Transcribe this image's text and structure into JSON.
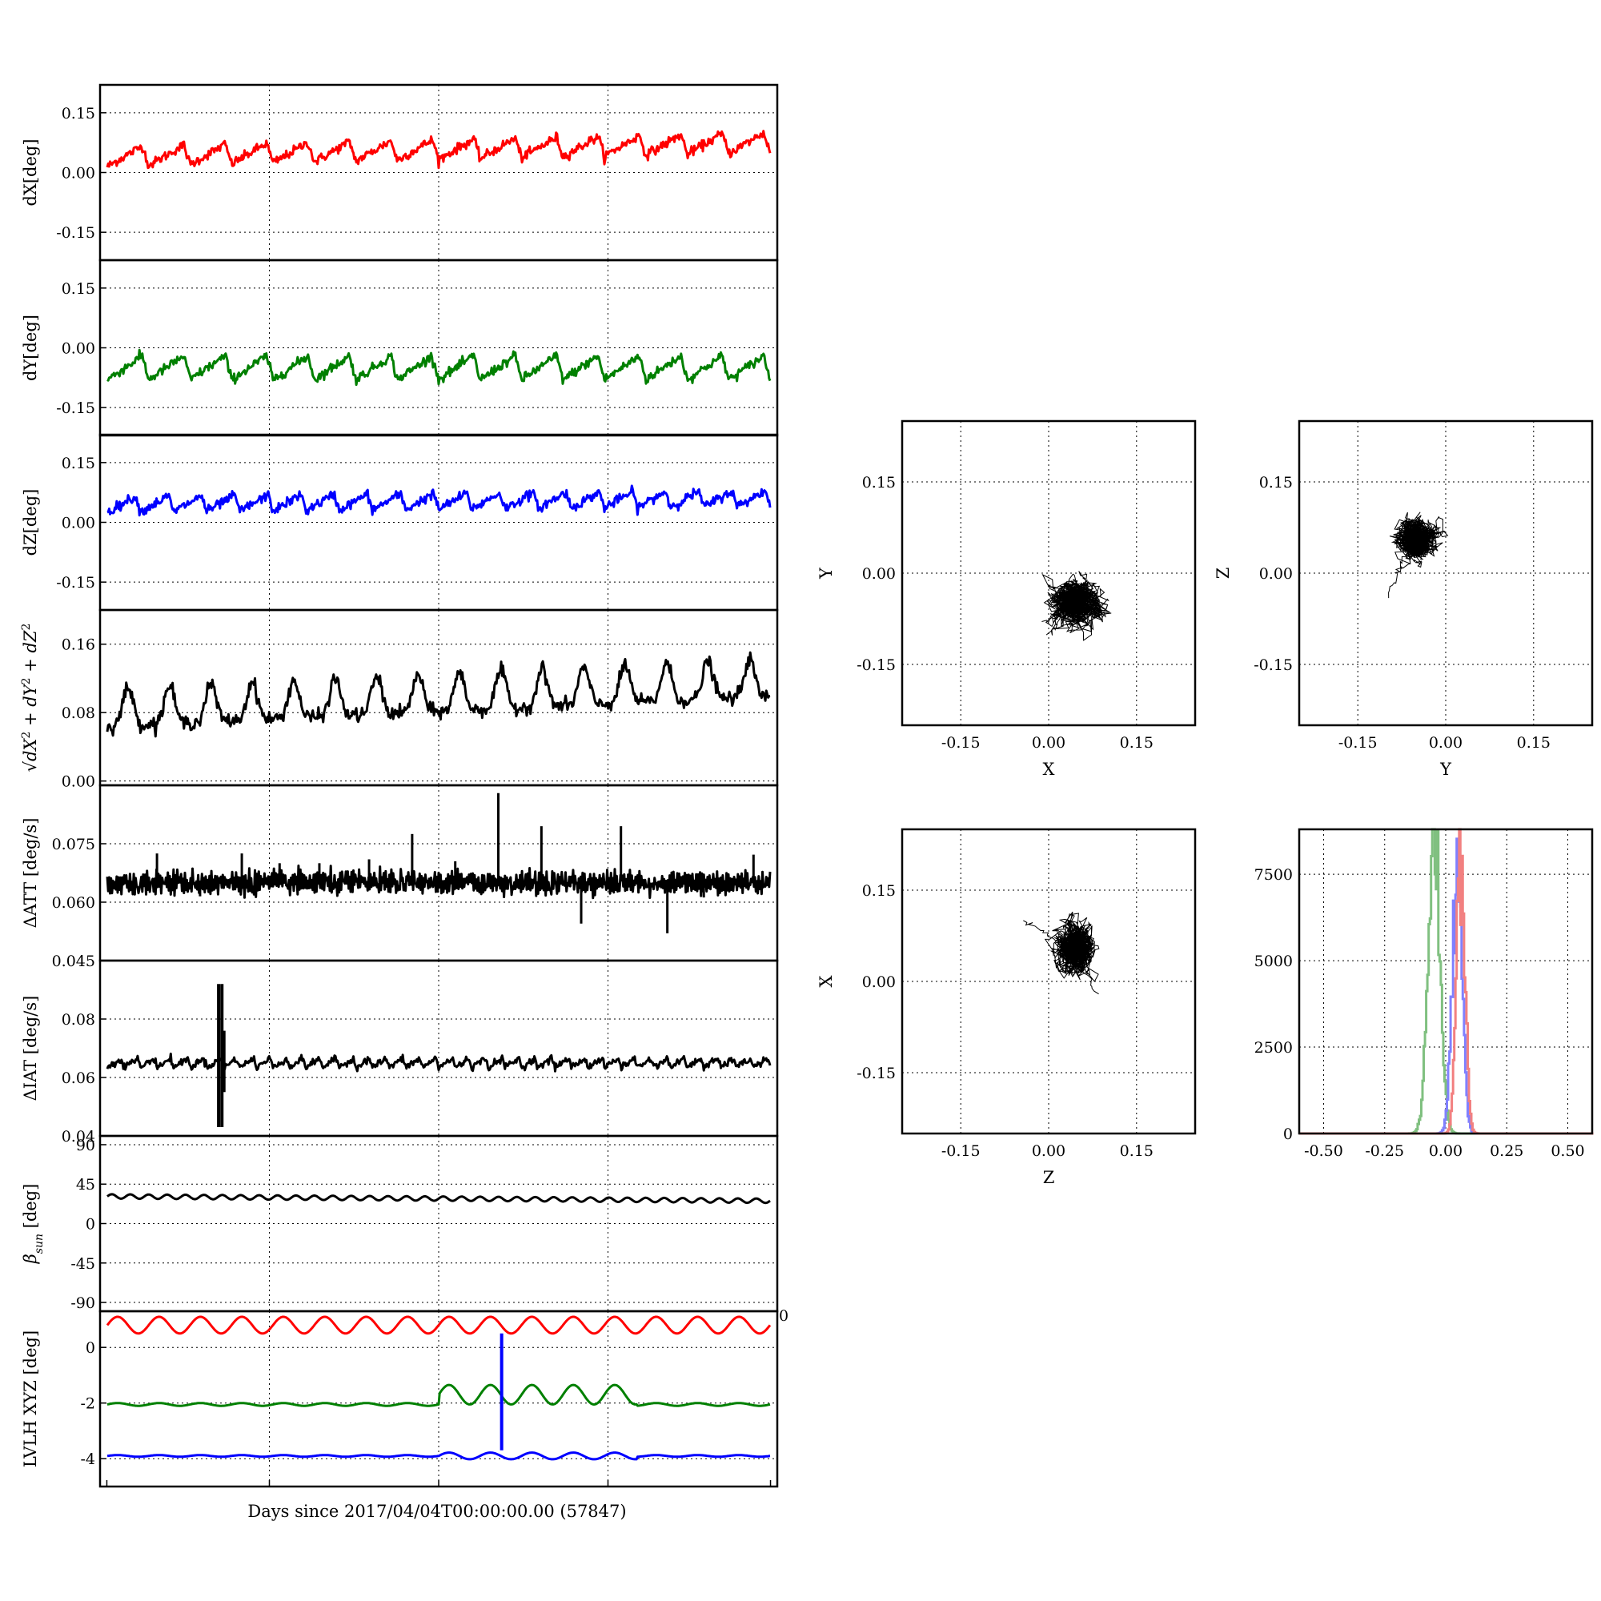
{
  "figure": {
    "xlabel": "Days since 2017/04/04T00:00:00.00 (57847)",
    "grid": true
  },
  "colors": {
    "red": "#ff0000",
    "green": "#008000",
    "blue": "#0000ff",
    "black": "#000000",
    "hist_red": "#f28080",
    "hist_green": "#80c080",
    "hist_blue": "#8080ff"
  },
  "chart_data": [
    {
      "id": "dX",
      "type": "line",
      "ylabel": "dX[deg]",
      "ylim": [
        -0.22,
        0.22
      ],
      "yticks": [
        "0.15",
        "0.00",
        "-0.15"
      ],
      "ytick_values": [
        0.15,
        0.0,
        -0.15
      ],
      "series": [
        {
          "color": "red",
          "base": 0.04,
          "trend": 0.035,
          "cycles": 16,
          "amp": 0.025,
          "noise": 0.006,
          "shape": "saw"
        }
      ]
    },
    {
      "id": "dY",
      "type": "line",
      "ylabel": "dY[deg]",
      "ylim": [
        -0.22,
        0.22
      ],
      "yticks": [
        "0.15",
        "0.00",
        "-0.15"
      ],
      "ytick_values": [
        0.15,
        0.0,
        -0.15
      ],
      "series": [
        {
          "color": "green",
          "base": -0.05,
          "trend": 0.0,
          "cycles": 16,
          "amp": 0.03,
          "noise": 0.006,
          "shape": "saw"
        }
      ]
    },
    {
      "id": "dZ",
      "type": "line",
      "ylabel": "dZ[deg]",
      "ylim": [
        -0.22,
        0.22
      ],
      "yticks": [
        "0.15",
        "0.00",
        "-0.15"
      ],
      "ytick_values": [
        0.15,
        0.0,
        -0.15
      ],
      "series": [
        {
          "color": "blue",
          "base": 0.045,
          "trend": 0.015,
          "cycles": 20,
          "amp": 0.02,
          "noise": 0.006,
          "shape": "saw"
        }
      ]
    },
    {
      "id": "dR",
      "type": "line",
      "ylabel_parts": [
        "√",
        "dX",
        "2",
        " + dY",
        "2",
        " + dZ",
        "2"
      ],
      "ylim": [
        -0.005,
        0.2
      ],
      "yticks": [
        "0.16",
        "0.08",
        "0.00"
      ],
      "ytick_values": [
        0.16,
        0.08,
        0.0
      ],
      "series": [
        {
          "color": "black",
          "base": 0.07,
          "trend": 0.035,
          "cycles": 16,
          "amp": 0.02,
          "noise": 0.004,
          "shape": "peaks"
        }
      ]
    },
    {
      "id": "dATT",
      "type": "line",
      "ylabel": "ΔATT [deg/s]",
      "ylim": [
        0.045,
        0.09
      ],
      "yticks": [
        "0.075",
        "0.060",
        "0.045"
      ],
      "ytick_values": [
        0.075,
        0.06,
        0.045
      ],
      "series": [
        {
          "color": "black",
          "base": 0.065,
          "trend": 0.0,
          "cycles": 80,
          "amp": 0.0015,
          "noise": 0.001,
          "shape": "band"
        }
      ],
      "spikes": [
        [
          0.075,
          0.0725
        ],
        [
          0.203,
          0.0725
        ],
        [
          0.26,
          0.07
        ],
        [
          0.32,
          0.07
        ],
        [
          0.395,
          0.071
        ],
        [
          0.46,
          0.0775
        ],
        [
          0.525,
          0.0705
        ],
        [
          0.59,
          0.088
        ],
        [
          0.655,
          0.0795
        ],
        [
          0.715,
          0.0545
        ],
        [
          0.775,
          0.0795
        ],
        [
          0.845,
          0.052
        ],
        [
          0.975,
          0.0722
        ],
        [
          0.14,
          0.0615
        ],
        [
          0.9,
          0.0612
        ]
      ]
    },
    {
      "id": "dIAT",
      "type": "line",
      "ylabel": "ΔIAT [deg/s]",
      "ylim": [
        0.04,
        0.1
      ],
      "yticks": [
        "0.08",
        "0.06",
        "0.04"
      ],
      "ytick_values": [
        0.08,
        0.06,
        0.04
      ],
      "series": [
        {
          "color": "black",
          "base": 0.065,
          "trend": 0.0,
          "cycles": 40,
          "amp": 0.0015,
          "noise": 0.0006,
          "shape": "saw"
        }
      ],
      "spikes_pair": [
        [
          0.168,
          0.043,
          0.092
        ],
        [
          0.173,
          0.043,
          0.092
        ],
        [
          0.176,
          0.055,
          0.076
        ]
      ]
    },
    {
      "id": "beta",
      "type": "line",
      "ylabel_parts": [
        "β",
        "sun",
        " [deg]"
      ],
      "ylim": [
        -100,
        100
      ],
      "yticks": [
        "90",
        "45",
        "0",
        "-45",
        "-90"
      ],
      "ytick_values": [
        90,
        45,
        0,
        -45,
        -90
      ],
      "series": [
        {
          "color": "black",
          "base": 31,
          "trend": -5,
          "cycles": 36,
          "amp": 2.5,
          "noise": 0,
          "shape": "sine"
        }
      ]
    },
    {
      "id": "lvlh",
      "type": "line",
      "ylabel": "LVLH XYZ [deg]",
      "ylim": [
        -5,
        1.3
      ],
      "yticks": [
        "0",
        "-2",
        "-4"
      ],
      "ytick_values": [
        0,
        -2,
        -4
      ],
      "extra_tick": "0",
      "series": [
        {
          "color": "red",
          "base": 0.8,
          "trend": 0.0,
          "cycles": 16,
          "amp": 0.3,
          "noise": 0.0,
          "shape": "sine"
        },
        {
          "color": "green",
          "base": -2.05,
          "trend": 0.0,
          "cycles": 16,
          "amp": 0.05,
          "noise": 0.0,
          "shape": "lvlh_green"
        },
        {
          "color": "blue",
          "base": -3.9,
          "trend": 0.0,
          "cycles": 16,
          "amp": 0.03,
          "noise": 0.0,
          "shape": "lvlh_blue"
        }
      ],
      "vline": {
        "x": 0.595,
        "y0": -3.7,
        "y1": 0.5,
        "color": "blue"
      }
    },
    {
      "id": "scatter_xy",
      "type": "scatter",
      "xlabel": "X",
      "ylabel": "Y",
      "xlim": [
        -0.25,
        0.25
      ],
      "ylim": [
        -0.25,
        0.25
      ],
      "ticks": [
        "-0.15",
        "0.00",
        "0.15"
      ],
      "tick_values": [
        -0.15,
        0.0,
        0.15
      ],
      "cloud": {
        "cx": 0.045,
        "cy": -0.05,
        "sx": 0.022,
        "sy": 0.019,
        "tail": [
          [
            0.0,
            -0.1
          ],
          [
            -0.005,
            -0.08
          ]
        ]
      }
    },
    {
      "id": "scatter_yz",
      "type": "scatter",
      "xlabel": "Y",
      "ylabel": "Z",
      "xlim": [
        -0.25,
        0.25
      ],
      "ylim": [
        -0.25,
        0.25
      ],
      "ticks": [
        "-0.15",
        "0.00",
        "0.15"
      ],
      "tick_values": [
        -0.15,
        0.0,
        0.15
      ],
      "cloud": {
        "cx": -0.05,
        "cy": 0.055,
        "sx": 0.019,
        "sy": 0.016,
        "tail": [
          [
            -0.1,
            -0.04
          ],
          [
            -0.085,
            0.0
          ]
        ]
      }
    },
    {
      "id": "scatter_zx",
      "type": "scatter",
      "xlabel": "Z",
      "ylabel": "X",
      "xlim": [
        -0.25,
        0.25
      ],
      "ylim": [
        -0.25,
        0.25
      ],
      "ticks": [
        "-0.15",
        "0.00",
        "0.15"
      ],
      "tick_values": [
        -0.15,
        0.0,
        0.15
      ],
      "cloud": {
        "cx": 0.045,
        "cy": 0.055,
        "sx": 0.016,
        "sy": 0.022,
        "tail": [
          [
            -0.045,
            0.1
          ],
          [
            0.08,
            -0.02
          ]
        ]
      }
    },
    {
      "id": "histogram",
      "type": "histogram",
      "xlim": [
        -0.6,
        0.6
      ],
      "ylim": [
        0,
        8800
      ],
      "xticks": [
        "-0.50",
        "-0.25",
        "0.00",
        "0.25",
        "0.50"
      ],
      "xtick_values": [
        -0.5,
        -0.25,
        0.0,
        0.25,
        0.5
      ],
      "yticks": [
        "7500",
        "5000",
        "2500",
        "0"
      ],
      "ytick_values": [
        7500,
        5000,
        2500,
        0
      ],
      "series": [
        {
          "color": "hist_green",
          "mean": -0.05,
          "sd": 0.024,
          "peak": 8700
        },
        {
          "color": "hist_blue",
          "mean": 0.045,
          "sd": 0.02,
          "peak": 8000
        },
        {
          "color": "hist_red",
          "mean": 0.06,
          "sd": 0.017,
          "peak": 8400
        }
      ]
    }
  ]
}
